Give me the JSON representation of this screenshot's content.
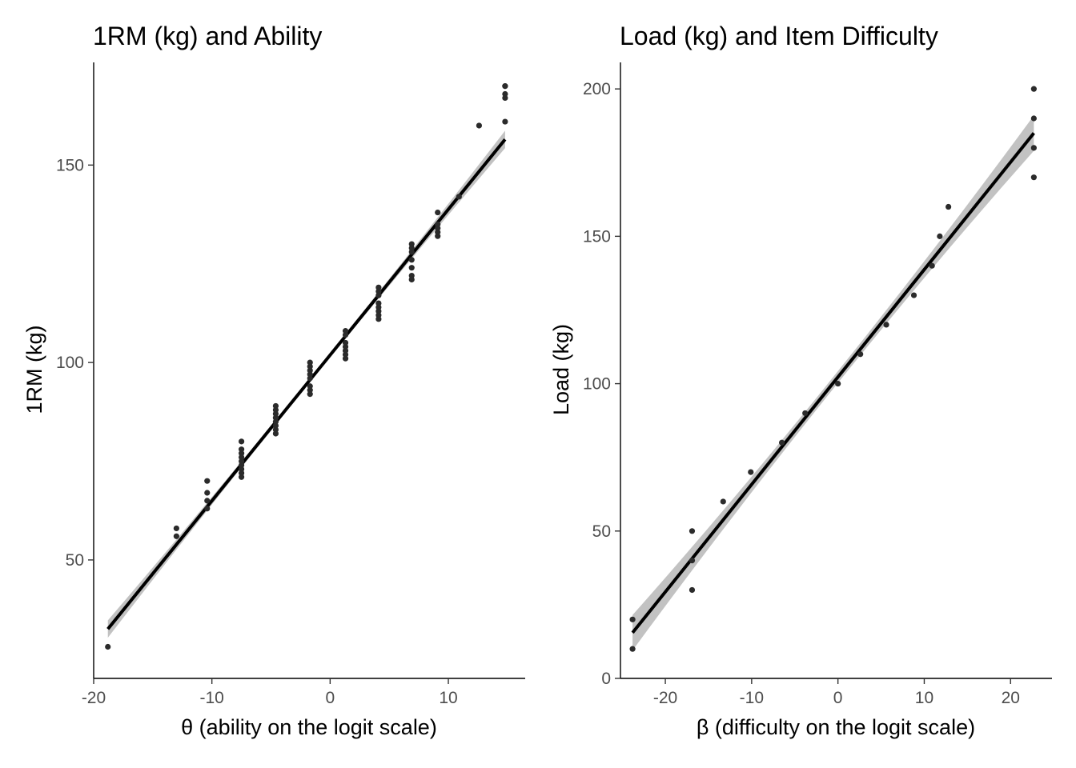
{
  "chart_data": [
    {
      "type": "scatter",
      "title": "1RM (kg) and Ability",
      "xlabel": "θ (ability on the logit scale)",
      "ylabel": "1RM (kg)",
      "xlim": [
        -20,
        16.5
      ],
      "ylim": [
        20,
        176
      ],
      "xticks": [
        -20,
        -10,
        0,
        10
      ],
      "xtick_labels": [
        "-20",
        "-10",
        "0",
        "10"
      ],
      "yticks": [
        50,
        100,
        150
      ],
      "ytick_labels": [
        "50",
        "100",
        "150"
      ],
      "grid": false,
      "fit": {
        "x": [
          -18.8,
          14.8
        ],
        "y": [
          32.5,
          156.5
        ],
        "band_halfwidth_start": 2.2,
        "band_halfwidth_mid": 0.6,
        "band_halfwidth_end": 2.2,
        "color": "#000000",
        "band_color": "#999999"
      },
      "x": [
        -18.8,
        -13.0,
        -13.0,
        -10.4,
        -10.4,
        -10.4,
        -10.4,
        -7.5,
        -7.5,
        -7.5,
        -7.5,
        -7.5,
        -7.5,
        -7.5,
        -7.5,
        -7.5,
        -4.6,
        -4.6,
        -4.6,
        -4.6,
        -4.6,
        -4.6,
        -4.6,
        -4.6,
        -1.7,
        -1.7,
        -1.7,
        -1.7,
        -1.7,
        -1.7,
        -1.7,
        -1.7,
        1.3,
        1.3,
        1.3,
        1.3,
        1.3,
        1.3,
        1.3,
        4.1,
        4.1,
        4.1,
        4.1,
        4.1,
        4.1,
        4.1,
        4.1,
        6.9,
        6.9,
        6.9,
        6.9,
        6.9,
        6.9,
        6.9,
        9.1,
        9.1,
        9.1,
        9.1,
        9.1,
        10.9,
        12.6,
        14.8,
        14.8,
        14.8,
        14.8,
        14.8
      ],
      "y": [
        28,
        56,
        58,
        63,
        65,
        67,
        70,
        71,
        72,
        73,
        74,
        75,
        76,
        77,
        78,
        80,
        82,
        83,
        84,
        85,
        86,
        87,
        88,
        89,
        92,
        93,
        94,
        96,
        97,
        98,
        99,
        100,
        101,
        102,
        103,
        104,
        105,
        107,
        108,
        111,
        112,
        113,
        114,
        115,
        117,
        118,
        119,
        121,
        122,
        124,
        126,
        128,
        129,
        130,
        132,
        133,
        134,
        135,
        138,
        142,
        160,
        161,
        167,
        168,
        170,
        170
      ]
    },
    {
      "type": "scatter",
      "title": "Load (kg) and Item Difficulty",
      "xlabel": "β (difficulty on the logit scale)",
      "ylabel": "Load (kg)",
      "xlim": [
        -25.2,
        24.8
      ],
      "ylim": [
        0,
        209
      ],
      "xticks": [
        -20,
        -10,
        0,
        10,
        20
      ],
      "xtick_labels": [
        "-20",
        "-10",
        "0",
        "10",
        "20"
      ],
      "yticks": [
        0,
        50,
        100,
        150,
        200
      ],
      "ytick_labels": [
        "0",
        "50",
        "100",
        "150",
        "200"
      ],
      "grid": false,
      "fit": {
        "x": [
          -23.8,
          22.7
        ],
        "y": [
          15.5,
          185
        ],
        "band_halfwidth_start": 6.0,
        "band_halfwidth_mid": 2.0,
        "band_halfwidth_end": 6.0,
        "color": "#000000",
        "band_color": "#999999"
      },
      "x": [
        -23.8,
        -23.8,
        -16.9,
        -16.9,
        -16.9,
        -13.3,
        -10.1,
        -6.5,
        -3.8,
        0.0,
        2.6,
        5.6,
        8.8,
        10.9,
        11.8,
        12.8,
        22.7,
        22.7,
        22.7,
        22.7
      ],
      "y": [
        10,
        20,
        30,
        40,
        50,
        60,
        70,
        80,
        90,
        100,
        110,
        120,
        130,
        140,
        150,
        160,
        170,
        180,
        190,
        200
      ]
    }
  ]
}
